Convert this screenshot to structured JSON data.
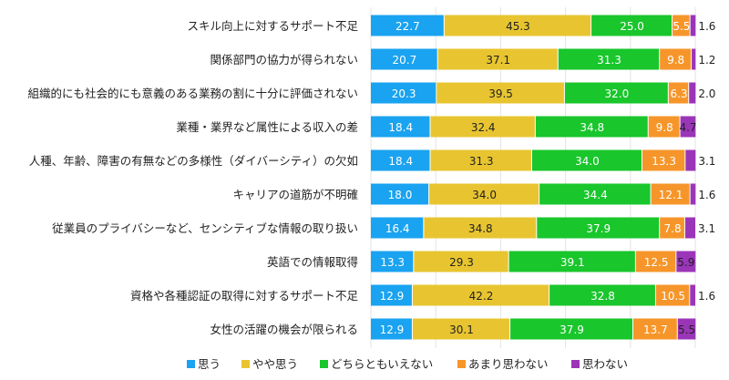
{
  "chart_data": {
    "type": "bar",
    "orientation": "horizontal",
    "stacked": true,
    "unit": "%",
    "xlim": [
      0,
      100
    ],
    "grid": true,
    "legend_position": "bottom",
    "categories": [
      "スキル向上に対するサポート不足",
      "関係部門の協力が得られない",
      "組織的にも社会的にも意義のある業務の割に十分に評価されない",
      "業種・業界など属性による収入の差",
      "人種、年齢、障害の有無などの多様性（ダイバーシティ）の欠如",
      "キャリアの道筋が不明確",
      "従業員のプライバシーなど、センシティブな情報の取り扱い",
      "英語での情報取得",
      "資格や各種認証の取得に対するサポート不足",
      "女性の活躍の機会が限られる"
    ],
    "series": [
      {
        "name": "思う",
        "color": "#1aa3f0",
        "label_color": "#ffffff",
        "values": [
          22.7,
          20.7,
          20.3,
          18.4,
          18.4,
          18.0,
          16.4,
          13.3,
          12.9,
          12.9
        ]
      },
      {
        "name": "やや思う",
        "color": "#e8c530",
        "label_color": "#222222",
        "values": [
          45.3,
          37.1,
          39.5,
          32.4,
          31.3,
          34.0,
          34.8,
          29.3,
          42.2,
          30.1
        ]
      },
      {
        "name": "どちらともいえない",
        "color": "#19c62c",
        "label_color": "#ffffff",
        "values": [
          25.0,
          31.3,
          32.0,
          34.8,
          34.0,
          34.4,
          37.9,
          39.1,
          32.8,
          37.9
        ]
      },
      {
        "name": "あまり思わない",
        "color": "#f6962a",
        "label_color": "#ffffff",
        "values": [
          5.5,
          9.8,
          6.3,
          9.8,
          13.3,
          12.1,
          7.8,
          12.5,
          10.5,
          13.7
        ]
      },
      {
        "name": "思わない",
        "color": "#9b35b8",
        "label_color": "#222222",
        "values": [
          1.6,
          1.2,
          2.0,
          4.7,
          3.1,
          1.6,
          3.1,
          5.9,
          1.6,
          5.5
        ]
      }
    ]
  }
}
